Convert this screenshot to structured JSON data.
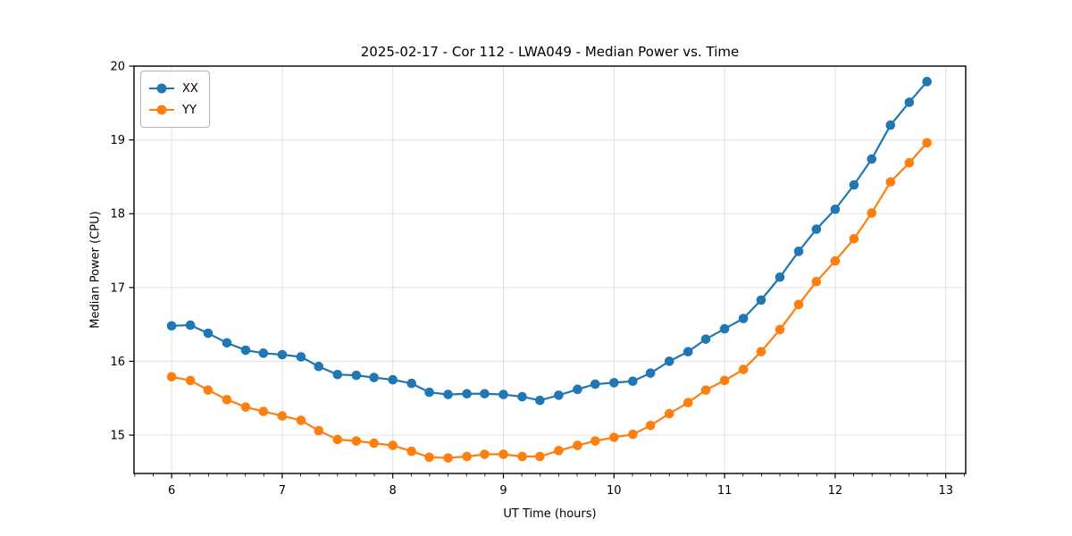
{
  "chart_data": {
    "type": "line",
    "title": "2025-02-17 - Cor 112 - LWA049 - Median Power vs. Time",
    "xlabel": "UT Time (hours)",
    "ylabel": "Median Power (CPU)",
    "xlim": [
      5.66,
      13.18
    ],
    "ylim": [
      14.48,
      20.0
    ],
    "xticks": [
      6,
      7,
      8,
      9,
      10,
      11,
      12,
      13
    ],
    "yticks": [
      15,
      16,
      17,
      18,
      19,
      20
    ],
    "x_minor_step": 0.166667,
    "grid": true,
    "legend_position": "upper-left",
    "x": [
      6.0,
      6.17,
      6.33,
      6.5,
      6.67,
      6.83,
      7.0,
      7.17,
      7.33,
      7.5,
      7.67,
      7.83,
      8.0,
      8.17,
      8.33,
      8.5,
      8.67,
      8.83,
      9.0,
      9.17,
      9.33,
      9.5,
      9.67,
      9.83,
      10.0,
      10.17,
      10.33,
      10.5,
      10.67,
      10.83,
      11.0,
      11.17,
      11.33,
      11.5,
      11.67,
      11.83,
      12.0,
      12.17,
      12.33,
      12.5,
      12.67,
      12.83
    ],
    "series": [
      {
        "name": "XX",
        "color": "#1f77b4",
        "marker": "circle",
        "values": [
          16.48,
          16.49,
          16.38,
          16.25,
          16.15,
          16.11,
          16.09,
          16.06,
          15.93,
          15.82,
          15.81,
          15.78,
          15.75,
          15.7,
          15.58,
          15.55,
          15.56,
          15.56,
          15.55,
          15.52,
          15.47,
          15.54,
          15.62,
          15.69,
          15.71,
          15.73,
          15.84,
          16.0,
          16.13,
          16.3,
          16.44,
          16.58,
          16.83,
          17.14,
          17.49,
          17.79,
          18.06,
          18.39,
          18.74,
          19.2,
          19.51,
          19.79
        ]
      },
      {
        "name": "YY",
        "color": "#ff7f0e",
        "marker": "circle",
        "values": [
          15.79,
          15.74,
          15.61,
          15.48,
          15.38,
          15.32,
          15.26,
          15.2,
          15.06,
          14.94,
          14.92,
          14.89,
          14.86,
          14.78,
          14.7,
          14.69,
          14.71,
          14.74,
          14.74,
          14.71,
          14.71,
          14.79,
          14.86,
          14.92,
          14.97,
          15.01,
          15.13,
          15.29,
          15.44,
          15.61,
          15.74,
          15.89,
          16.13,
          16.43,
          16.77,
          17.08,
          17.36,
          17.66,
          18.01,
          18.43,
          18.69,
          18.96
        ]
      }
    ]
  },
  "colors": {
    "background": "#ffffff",
    "spine": "#000000",
    "grid": "#e0e0e0",
    "text": "#000000",
    "legend_border": "#b3b3b3"
  }
}
